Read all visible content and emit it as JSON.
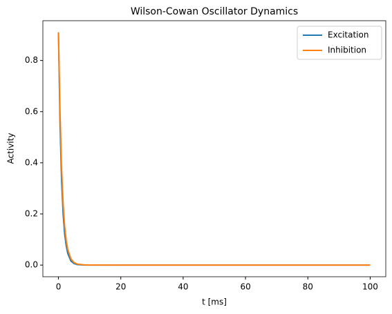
{
  "chart_data": {
    "type": "line",
    "title": "Wilson-Cowan Oscillator Dynamics",
    "x_label": "t [ms]",
    "y_label": "Activity",
    "x": [
      0,
      0.5,
      1,
      1.5,
      2,
      2.5,
      3,
      4,
      5,
      6,
      8,
      10,
      20,
      30,
      40,
      50,
      60,
      70,
      80,
      90,
      100
    ],
    "series": [
      {
        "name": "Excitation",
        "color": "#1f77b4",
        "values": [
          0.91,
          0.55,
          0.33,
          0.2,
          0.12,
          0.075,
          0.045,
          0.016,
          0.006,
          0.002,
          0.0005,
          0,
          0,
          0,
          0,
          0,
          0,
          0,
          0,
          0,
          0
        ]
      },
      {
        "name": "Inhibition",
        "color": "#ff7f0e",
        "values": [
          0.91,
          0.6,
          0.38,
          0.24,
          0.15,
          0.095,
          0.06,
          0.024,
          0.01,
          0.004,
          0.001,
          0.0002,
          0,
          0,
          0,
          0,
          0,
          0,
          0,
          0,
          0
        ]
      }
    ],
    "xlim": [
      -5,
      105
    ],
    "ylim": [
      -0.0455,
      0.9555
    ],
    "xticks": [
      0,
      20,
      40,
      60,
      80,
      100
    ],
    "yticks": [
      {
        "value": 0,
        "label": "0.0"
      },
      0.2,
      0.4,
      0.6,
      0.8
    ],
    "legend": "upper right"
  }
}
